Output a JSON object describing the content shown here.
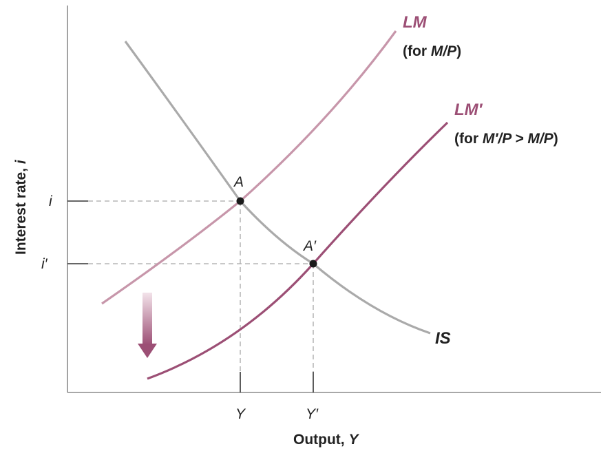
{
  "colors": {
    "axis": "#8c8c8c",
    "is_curve": "#aaaaaa",
    "lm_curve": "#c796aa",
    "lm_prime_curve": "#9c4f75",
    "lm_label": "#9c4f75",
    "dashed": "#a8a8a8",
    "point": "#1a1a1a",
    "arrow_top": "#f0dde5",
    "arrow_bottom": "#9c4f75",
    "text": "#222222"
  },
  "axes": {
    "y_label_main": "Interest rate, ",
    "y_label_var": "i",
    "x_label_main": "Output, ",
    "x_label_var": "Y",
    "y_ticks": [
      "i",
      "i′"
    ],
    "x_ticks": [
      "Y",
      "Y′"
    ]
  },
  "curves": {
    "lm_name": "LM",
    "lm_note_prefix": "(for ",
    "lm_note_var": "M/P",
    "lm_note_suffix": ")",
    "lm_prime_name": "LM′",
    "lm_prime_note_prefix": "(for ",
    "lm_prime_note_var": "M′/P > M/P",
    "lm_prime_note_suffix": ")",
    "is_name": "IS"
  },
  "points": {
    "a": "A",
    "a_prime": "A′"
  },
  "shift_arrow_icon": "down-arrow-icon"
}
